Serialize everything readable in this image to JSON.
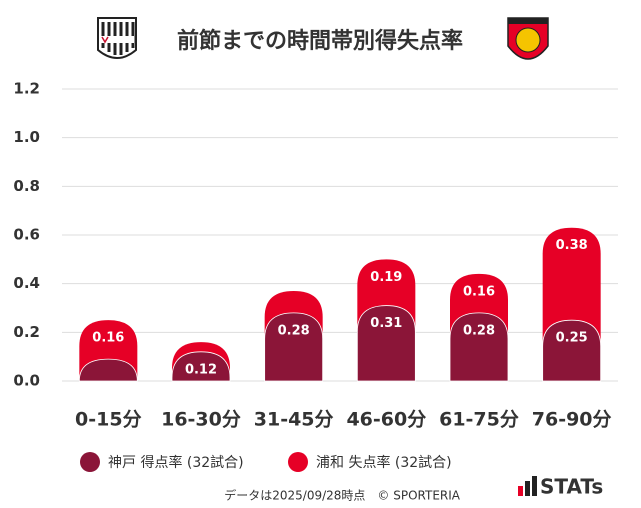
{
  "chart_data": {
    "type": "stacked_bar",
    "title": "前節までの時間帯別得失点率",
    "categories": [
      "0-15分",
      "16-30分",
      "31-45分",
      "46-60分",
      "61-75分",
      "76-90分"
    ],
    "series": [
      {
        "name": "神戸 得点率 (32試合)",
        "color": "#8b1538",
        "values": [
          0.09,
          0.12,
          0.28,
          0.31,
          0.28,
          0.25
        ],
        "value_labels": [
          null,
          "0.12",
          "0.28",
          "0.31",
          "0.28",
          "0.25"
        ]
      },
      {
        "name": "浦和 失点率 (32試合)",
        "color": "#e60026",
        "values": [
          0.16,
          0.04,
          0.09,
          0.19,
          0.16,
          0.38
        ],
        "value_labels": [
          "0.16",
          null,
          null,
          "0.19",
          "0.16",
          "0.38"
        ]
      }
    ],
    "ylim": [
      0,
      1.2
    ],
    "yticks": [
      {
        "value": 0,
        "label": "0.0"
      },
      0.2,
      0.4,
      0.6,
      0.8,
      {
        "value": 1,
        "label": "1.0"
      },
      1.2
    ],
    "grid": true,
    "footer": "データは2025/09/28時点　© SPORTERIA",
    "brand": "STATs"
  }
}
